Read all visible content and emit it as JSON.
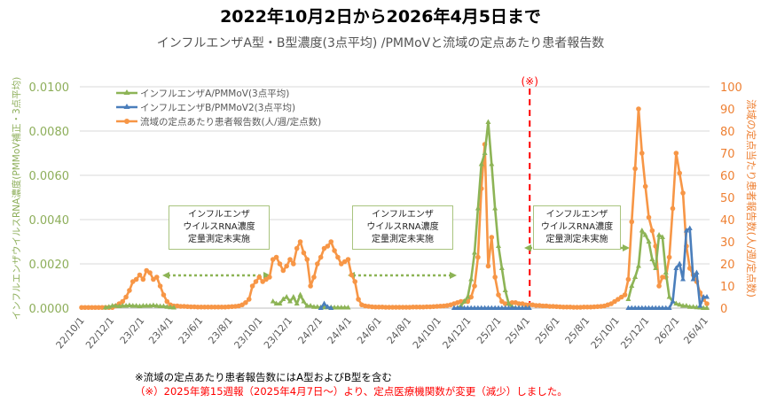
{
  "chart_data": {
    "type": "line",
    "title": "2022年10月2日から2026年4月5日まで",
    "subtitle": "インフルエンザA型・B型濃度(3点平均) /PMMoVと流域の定点あたり患者報告数",
    "ylabel_left": "インフルエンザウイルスRNA濃度(PMMoV補正・3点平均)",
    "ylabel_right": "流域の定点当たり患者報告数(人/週/定点数)",
    "ylim_left": [
      0,
      0.01
    ],
    "ylim_right": [
      0,
      100
    ],
    "yticks_left": [
      "0.0000",
      "0.0020",
      "0.0040",
      "0.0060",
      "0.0080",
      "0.0100"
    ],
    "yticks_right": [
      "0",
      "10",
      "20",
      "30",
      "40",
      "50",
      "60",
      "70",
      "80",
      "90",
      "100"
    ],
    "xlim": [
      "2022-10-02",
      "2026-04-05"
    ],
    "x_step_days": 7,
    "xticks": [
      "22/10/1",
      "22/12/1",
      "23/2/1",
      "23/4/1",
      "23/6/1",
      "23/8/1",
      "23/10/1",
      "23/12/1",
      "24/2/1",
      "24/4/1",
      "24/6/1",
      "24/8/1",
      "24/10/1",
      "24/12/1",
      "25/2/1",
      "25/4/1",
      "25/6/1",
      "25/8/1",
      "25/10/1",
      "25/12/1",
      "26/2/1",
      "26/4/1"
    ],
    "grid": true,
    "legend_position": "top-left",
    "series": [
      {
        "name": "インフルエンザA/PMMoV(3点平均)",
        "axis": "left",
        "color": "#8DB456",
        "marker": "triangle",
        "segments": [
          {
            "start": "2022-11-20",
            "values": [
              2e-05,
              5e-05,
              0.0001,
              0.0001,
              8e-05,
              0.0001,
              0.0001,
              0.00012,
              0.0001,
              0.0001,
              8e-05,
              0.0001,
              0.0001,
              0.0001,
              0.00012,
              0.0001,
              8e-05,
              8e-05,
              5e-05,
              3e-05,
              2e-05
            ]
          },
          {
            "start": "2023-10-29",
            "values": [
              0.0003,
              0.0002,
              0.0002,
              0.0004,
              0.0005,
              0.0003,
              0.0005,
              0.0002,
              0.0006,
              0.0003,
              0.0001,
              0.0001,
              5e-05,
              5e-05,
              3e-05,
              3e-05,
              3e-05,
              3e-05,
              2e-05,
              2e-05,
              2e-05,
              2e-05,
              2e-05
            ]
          },
          {
            "start": "2024-11-10",
            "values": [
              0,
              0.0001,
              0.0003,
              0.0005,
              0.0013,
              0.0025,
              0.0045,
              0.0065,
              0.007,
              0.0084,
              0.0065,
              0.0045,
              0.0028,
              0.0018,
              0.0008,
              0.0002,
              5e-05,
              0,
              0,
              0,
              0,
              0
            ]
          },
          {
            "start": "2025-10-26",
            "values": [
              0.0004,
              0.001,
              0.0014,
              0.0019,
              0.0035,
              0.0033,
              0.003,
              0.0022,
              0.0018,
              0.0033,
              0.0032,
              0.0016,
              0.0005,
              0.0003,
              0.0002,
              0.00015,
              0.0001,
              0.0001,
              5e-05,
              5e-05,
              3e-05,
              2e-05,
              0,
              0
            ]
          }
        ]
      },
      {
        "name": "インフルエンザB/PMMoV2(3点平均)",
        "axis": "left",
        "color": "#4A7EBB",
        "marker": "triangle",
        "segments": [
          {
            "start": "2024-02-04",
            "values": [
              0,
              0.0002,
              5e-05,
              0
            ]
          },
          {
            "start": "2024-11-03",
            "values": [
              0,
              0,
              0,
              0,
              0,
              0,
              0,
              0,
              0,
              0,
              0,
              0,
              0,
              0,
              0,
              0,
              0,
              0,
              0,
              0,
              0,
              0,
              0
            ]
          },
          {
            "start": "2025-10-26",
            "values": [
              0,
              0,
              0,
              0,
              0,
              0,
              0,
              0,
              0,
              0,
              0,
              0,
              0,
              0.0003,
              0.0018,
              0.002,
              0.0013,
              0.0035,
              0.0036,
              0.0013,
              0.0016,
              0.0001,
              0.0005,
              0.0005
            ]
          }
        ]
      },
      {
        "name": "流域の定点あたり患者報告数(人/週/定点数)",
        "axis": "right",
        "color": "#F79646",
        "marker": "circle",
        "segments": [
          {
            "start": "2022-10-02",
            "values": [
              0.3,
              0.3,
              0.3,
              0.3,
              0.3,
              0.3,
              0.3,
              0.3,
              0.3,
              0.3,
              1,
              2,
              3,
              5,
              8,
              12,
              13,
              15,
              13,
              17,
              16,
              13,
              14,
              10,
              6,
              3,
              1.5,
              1,
              1,
              0.8,
              0.8,
              0.7,
              0.6,
              0.6,
              0.5,
              0.5,
              0.5,
              0.5,
              0.5,
              0.5,
              0.5,
              0.5,
              0.5,
              0.6,
              0.7,
              0.8,
              1,
              1.5,
              2.5,
              4,
              10,
              12,
              14,
              12,
              13,
              14,
              22,
              23,
              20,
              17,
              19,
              22,
              20,
              27,
              30,
              25,
              22,
              10,
              14,
              20,
              23,
              27,
              28,
              30,
              26,
              23,
              20,
              21,
              22,
              15,
              12,
              4,
              1.5,
              1,
              0.8,
              0.6,
              0.5,
              0.5,
              0.5,
              0.4,
              0.4,
              0.4,
              0.4,
              0.4,
              0.4,
              0.4,
              0.4,
              0.5,
              0.5,
              0.5,
              0.5,
              0.6,
              0.6,
              0.7,
              0.8,
              0.9,
              1,
              1.2,
              1.5,
              2,
              2.5,
              3,
              3,
              3,
              5,
              10,
              23,
              54,
              74,
              19,
              32,
              14,
              6,
              3,
              2,
              2,
              2.5,
              2.5,
              2,
              2,
              1.5,
              1.5,
              1.5,
              1.2,
              1.2,
              1,
              1,
              0.8,
              0.8,
              0.7,
              0.6,
              0.5,
              0.5,
              0.5,
              0.4,
              0.4,
              0.4,
              0.5,
              0.5,
              0.5,
              0.6,
              0.7,
              0.8,
              1,
              1.5,
              2,
              3,
              4,
              5,
              6,
              13,
              39,
              63,
              90,
              70,
              55,
              41,
              35,
              28,
              10,
              14,
              14,
              23,
              45,
              70,
              61,
              52,
              28,
              18,
              15,
              12,
              7,
              4,
              2
            ]
          }
        ]
      }
    ],
    "marker_line": {
      "date": "2025-04-07",
      "label": "(※)",
      "color": "#FF0000"
    },
    "annotations": [
      {
        "lines": [
          "インフルエンザ",
          "ウイルスRNA濃度",
          "定量測定未実施"
        ]
      },
      {
        "lines": [
          "インフルエンザ",
          "ウイルスRNA濃度",
          "定量測定未実施"
        ]
      },
      {
        "lines": [
          "インフルエンザ",
          "ウイルスRNA濃度",
          "定量測定未実施"
        ]
      }
    ]
  },
  "notes": {
    "note1": "※流域の定点あたり患者報告数にはA型およびB型を含む",
    "note2": "（※）2025年第15週報（2025年4月7日～）より、定点医療機関数が変更（減少）しました。"
  }
}
